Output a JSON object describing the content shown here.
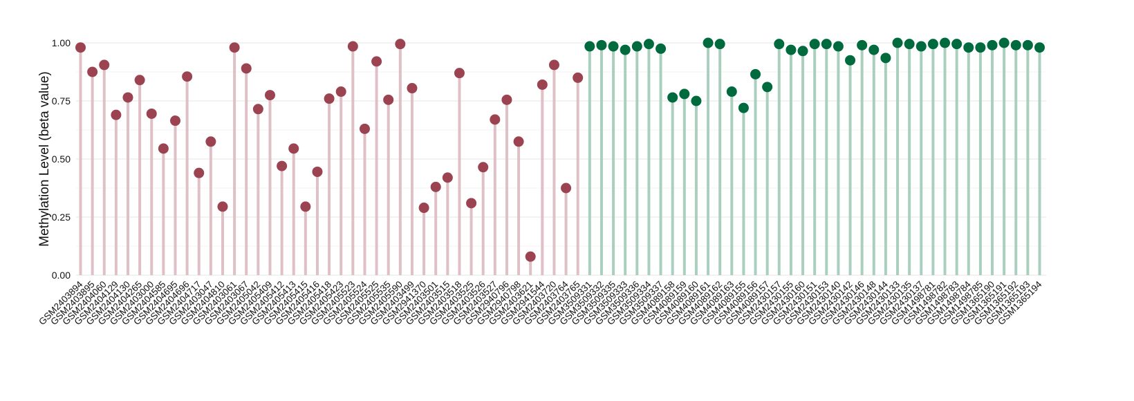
{
  "chart_data": {
    "type": "lollipop",
    "title": "",
    "xlabel": "",
    "ylabel": "Methylation Level (beta value)",
    "ylim": [
      0,
      1
    ],
    "yticks": [
      "0.00",
      "0.25",
      "0.50",
      "0.75",
      "1.00"
    ],
    "grid": true,
    "legend": "none",
    "colors": {
      "group1_point": "#9b4350",
      "group1_stem": "#dfc0c6",
      "group2_point": "#006a3f",
      "group2_stem": "#abcfbf"
    },
    "categories": [
      "GSM2403894",
      "GSM2403895",
      "GSM2404060",
      "GSM2404129",
      "GSM2404130",
      "GSM2404265",
      "GSM2403000",
      "GSM2404585",
      "GSM2404695",
      "GSM2404696",
      "GSM2404717",
      "GSM2403047",
      "GSM2404810",
      "GSM2403061",
      "GSM2403067",
      "GSM2405042",
      "GSM2405409",
      "GSM2405412",
      "GSM2405413",
      "GSM2405415",
      "GSM2405416",
      "GSM2405418",
      "GSM2405423",
      "GSM2405523",
      "GSM2405524",
      "GSM2405525",
      "GSM2405535",
      "GSM2405590",
      "GSM2403499",
      "GSM2941370",
      "GSM2403501",
      "GSM2403515",
      "GSM2403518",
      "GSM2403525",
      "GSM2403526",
      "GSM2403527",
      "GSM2940796",
      "GSM2940798",
      "GSM2403621",
      "GSM2941544",
      "GSM2403720",
      "GSM2403764",
      "GSM2403765",
      "GSM3509331",
      "GSM3509332",
      "GSM3509335",
      "GSM3509333",
      "GSM3509336",
      "GSM3509334",
      "GSM3509337",
      "GSM4089158",
      "GSM4089159",
      "GSM4089160",
      "GSM4089161",
      "GSM4089162",
      "GSM4089163",
      "GSM4089155",
      "GSM4089156",
      "GSM4089157",
      "GSM2430157",
      "GSM2430155",
      "GSM2430160",
      "GSM2430151",
      "GSM2430153",
      "GSM2430140",
      "GSM2430142",
      "GSM2430146",
      "GSM2430148",
      "GSM2430144",
      "GSM2430133",
      "GSM2430135",
      "GSM2430137",
      "GSM1498781",
      "GSM1498782",
      "GSM1498783",
      "GSM1498784",
      "GSM1498785",
      "GSM1365190",
      "GSM1365191",
      "GSM1365192",
      "GSM1365193",
      "GSM1365194"
    ],
    "groups": [
      1,
      1,
      1,
      1,
      1,
      1,
      1,
      1,
      1,
      1,
      1,
      1,
      1,
      1,
      1,
      1,
      1,
      1,
      1,
      1,
      1,
      1,
      1,
      1,
      1,
      1,
      1,
      1,
      1,
      1,
      1,
      1,
      1,
      1,
      1,
      1,
      1,
      1,
      1,
      1,
      1,
      1,
      1,
      2,
      2,
      2,
      2,
      2,
      2,
      2,
      2,
      2,
      2,
      2,
      2,
      2,
      2,
      2,
      2,
      2,
      2,
      2,
      2,
      2,
      2,
      2,
      2,
      2,
      2,
      2,
      2,
      2,
      2,
      2,
      2,
      2,
      2,
      2,
      2,
      2,
      2,
      2
    ],
    "values": [
      0.98,
      0.875,
      0.905,
      0.69,
      0.765,
      0.84,
      0.695,
      0.545,
      0.665,
      0.855,
      0.44,
      0.575,
      0.295,
      0.98,
      0.89,
      0.715,
      0.775,
      0.47,
      0.545,
      0.295,
      0.445,
      0.76,
      0.79,
      0.985,
      0.63,
      0.92,
      0.755,
      0.995,
      0.805,
      0.29,
      0.38,
      0.42,
      0.87,
      0.31,
      0.465,
      0.67,
      0.755,
      0.575,
      0.08,
      0.82,
      0.905,
      0.375,
      0.85,
      0.985,
      0.99,
      0.985,
      0.97,
      0.985,
      0.995,
      0.975,
      0.765,
      0.78,
      0.75,
      1.0,
      0.995,
      0.79,
      0.72,
      0.865,
      0.81,
      0.995,
      0.97,
      0.965,
      0.995,
      0.995,
      0.985,
      0.925,
      0.99,
      0.97,
      0.935,
      1.0,
      0.995,
      0.985,
      0.995,
      1.0,
      0.995,
      0.98,
      0.98,
      0.99,
      1.0,
      0.99,
      0.99,
      0.98
    ]
  }
}
